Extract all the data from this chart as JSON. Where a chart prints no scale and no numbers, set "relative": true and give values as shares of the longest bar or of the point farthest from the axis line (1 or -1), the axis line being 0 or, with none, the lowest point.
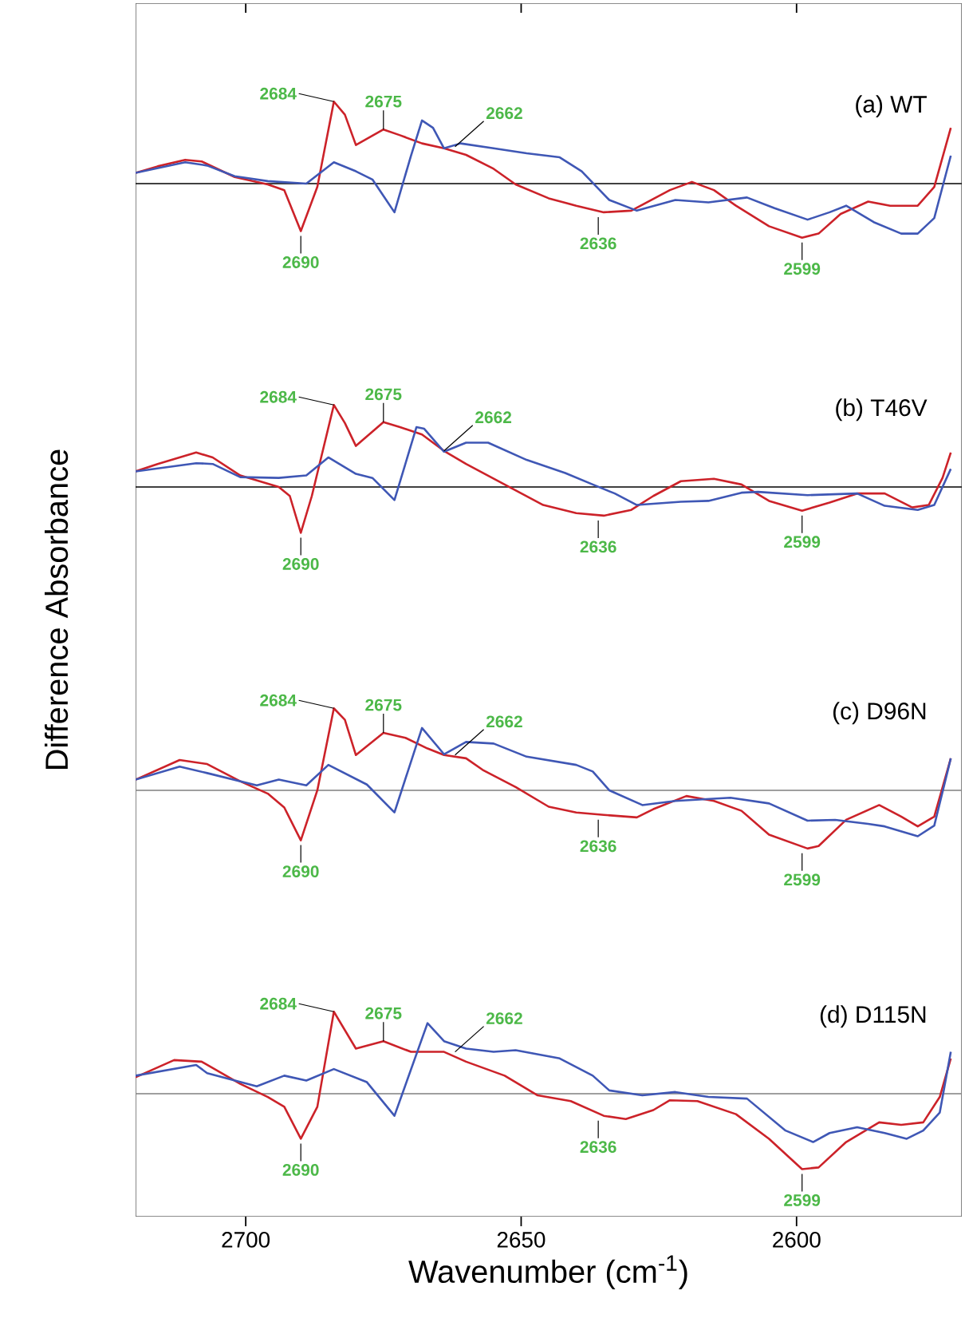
{
  "chart_data": [
    {
      "type": "line",
      "title": "(a) WT",
      "relative": true,
      "xlim": [
        2720,
        2570
      ],
      "xticks": [
        2700,
        2650,
        2600
      ],
      "tick_labels": false,
      "series": [
        {
          "color": "#cc2229",
          "x": [
            2720,
            2716,
            2711,
            2708,
            2702,
            2696,
            2693,
            2690,
            2687,
            2684,
            2682,
            2680,
            2675,
            2672,
            2668,
            2664,
            2660,
            2655,
            2651,
            2645,
            2640,
            2635,
            2630,
            2623,
            2619,
            2615,
            2611,
            2605,
            2599,
            2596,
            2592,
            2587,
            2583,
            2578,
            2575,
            2572
          ],
          "values": [
            0.13,
            0.21,
            0.29,
            0.27,
            0.08,
            -0.01,
            -0.08,
            -0.58,
            -0.04,
            1.0,
            0.84,
            0.47,
            0.66,
            0.59,
            0.49,
            0.43,
            0.35,
            0.18,
            -0.01,
            -0.18,
            -0.27,
            -0.35,
            -0.33,
            -0.08,
            0.02,
            -0.08,
            -0.27,
            -0.52,
            -0.66,
            -0.61,
            -0.37,
            -0.22,
            -0.27,
            -0.27,
            -0.04,
            0.68
          ]
        },
        {
          "color": "#3f57b5",
          "x": [
            2720,
            2711,
            2707,
            2702,
            2696,
            2689,
            2684,
            2680,
            2677,
            2673,
            2670,
            2668,
            2666,
            2664,
            2661,
            2655,
            2649,
            2643,
            2639,
            2634,
            2629,
            2622,
            2616,
            2609,
            2604,
            2598,
            2594,
            2591,
            2586,
            2581,
            2578,
            2575,
            2572
          ],
          "values": [
            0.13,
            0.26,
            0.22,
            0.09,
            0.03,
            0.0,
            0.26,
            0.15,
            0.05,
            -0.35,
            0.34,
            0.77,
            0.68,
            0.43,
            0.49,
            0.43,
            0.37,
            0.32,
            0.15,
            -0.2,
            -0.33,
            -0.2,
            -0.23,
            -0.17,
            -0.3,
            -0.44,
            -0.35,
            -0.27,
            -0.47,
            -0.61,
            -0.61,
            -0.42,
            0.34
          ]
        }
      ],
      "ref_lines": [
        {
          "axis": "y",
          "value": 0,
          "color": "#000000"
        }
      ],
      "annotations": [
        {
          "text": "2684",
          "x": 2684,
          "y": 1.0
        },
        {
          "text": "2675",
          "x": 2675,
          "y": 0.66
        },
        {
          "text": "2662",
          "x": 2662,
          "y": 0.45
        },
        {
          "text": "2690",
          "x": 2690,
          "y": -0.58
        },
        {
          "text": "2636",
          "x": 2636,
          "y": -0.35
        },
        {
          "text": "2599",
          "x": 2599,
          "y": -0.66
        }
      ]
    },
    {
      "type": "line",
      "title": "(b) T46V",
      "relative": true,
      "xlim": [
        2720,
        2570
      ],
      "tick_labels": false,
      "ylabel": "Difference Absorbance",
      "series": [
        {
          "color": "#cc2229",
          "x": [
            2720,
            2716,
            2709,
            2706,
            2701,
            2694,
            2692,
            2690,
            2688,
            2684,
            2682,
            2680,
            2675,
            2672,
            2668,
            2664,
            2660,
            2653,
            2646,
            2640,
            2635,
            2630,
            2626,
            2621,
            2615,
            2610,
            2605,
            2599,
            2594,
            2589,
            2584,
            2579,
            2576,
            2573.5,
            2572
          ],
          "values": [
            0.19,
            0.28,
            0.42,
            0.36,
            0.14,
            0.0,
            -0.11,
            -0.56,
            -0.11,
            1.0,
            0.78,
            0.5,
            0.79,
            0.73,
            0.64,
            0.44,
            0.28,
            0.03,
            -0.22,
            -0.32,
            -0.35,
            -0.28,
            -0.11,
            0.07,
            0.1,
            0.03,
            -0.17,
            -0.29,
            -0.19,
            -0.08,
            -0.08,
            -0.25,
            -0.22,
            0.11,
            0.42
          ]
        },
        {
          "color": "#3f57b5",
          "x": [
            2720,
            2709,
            2706,
            2701,
            2694,
            2689,
            2685,
            2680,
            2677,
            2673,
            2669,
            2667.6,
            2664,
            2660,
            2656,
            2649,
            2642,
            2637,
            2633,
            2629,
            2621,
            2616,
            2610,
            2607,
            2598,
            2589,
            2584,
            2578,
            2575,
            2572
          ],
          "values": [
            0.19,
            0.29,
            0.28,
            0.12,
            0.11,
            0.14,
            0.36,
            0.16,
            0.11,
            -0.16,
            0.73,
            0.71,
            0.43,
            0.54,
            0.54,
            0.33,
            0.17,
            0.03,
            -0.08,
            -0.22,
            -0.18,
            -0.17,
            -0.07,
            -0.06,
            -0.1,
            -0.08,
            -0.23,
            -0.28,
            -0.22,
            0.22
          ]
        }
      ],
      "ref_lines": [
        {
          "axis": "y",
          "value": 0,
          "color": "#000000"
        }
      ],
      "annotations": [
        {
          "text": "2684",
          "x": 2684,
          "y": 1.0
        },
        {
          "text": "2675",
          "x": 2675,
          "y": 0.79
        },
        {
          "text": "2662",
          "x": 2664,
          "y": 0.44
        },
        {
          "text": "2690",
          "x": 2690,
          "y": -0.56
        },
        {
          "text": "2636",
          "x": 2636,
          "y": -0.35
        },
        {
          "text": "2599",
          "x": 2599,
          "y": -0.29
        }
      ]
    },
    {
      "type": "line",
      "title": "(c) D96N",
      "relative": true,
      "xlim": [
        2720,
        2570
      ],
      "tick_labels": false,
      "series": [
        {
          "color": "#cc2229",
          "x": [
            2720,
            2712,
            2707,
            2701,
            2696,
            2693,
            2690,
            2687,
            2684,
            2682,
            2680,
            2675,
            2671,
            2667,
            2664,
            2660,
            2657,
            2651,
            2645,
            2640,
            2635,
            2629,
            2626,
            2620,
            2615,
            2610,
            2605,
            2598,
            2596,
            2591,
            2585,
            2581,
            2578,
            2575,
            2572
          ],
          "values": [
            0.13,
            0.37,
            0.32,
            0.11,
            -0.04,
            -0.21,
            -0.61,
            0.0,
            1.0,
            0.86,
            0.43,
            0.7,
            0.64,
            0.51,
            0.43,
            0.39,
            0.25,
            0.04,
            -0.2,
            -0.27,
            -0.3,
            -0.33,
            -0.23,
            -0.07,
            -0.13,
            -0.25,
            -0.54,
            -0.71,
            -0.68,
            -0.36,
            -0.18,
            -0.32,
            -0.44,
            -0.32,
            0.39
          ]
        },
        {
          "color": "#3f57b5",
          "x": [
            2720,
            2712,
            2707,
            2698,
            2694,
            2689,
            2685,
            2678,
            2673,
            2668,
            2664,
            2660,
            2655,
            2649,
            2640,
            2637,
            2634,
            2628,
            2622,
            2612,
            2605,
            2598,
            2593,
            2587,
            2584,
            2578,
            2575,
            2572
          ],
          "values": [
            0.13,
            0.29,
            0.21,
            0.06,
            0.13,
            0.06,
            0.31,
            0.07,
            -0.27,
            0.76,
            0.44,
            0.59,
            0.57,
            0.41,
            0.31,
            0.23,
            0.0,
            -0.18,
            -0.13,
            -0.09,
            -0.16,
            -0.37,
            -0.36,
            -0.41,
            -0.44,
            -0.56,
            -0.43,
            0.39
          ]
        }
      ],
      "ref_lines": [
        {
          "axis": "y",
          "value": 0,
          "color": "#7f7f7f"
        }
      ],
      "annotations": [
        {
          "text": "2684",
          "x": 2684,
          "y": 1.0
        },
        {
          "text": "2675",
          "x": 2675,
          "y": 0.7
        },
        {
          "text": "2662",
          "x": 2662,
          "y": 0.43
        },
        {
          "text": "2690",
          "x": 2690,
          "y": -0.61
        },
        {
          "text": "2636",
          "x": 2636,
          "y": -0.3
        },
        {
          "text": "2599",
          "x": 2599,
          "y": -0.71
        }
      ]
    },
    {
      "type": "line",
      "title": "(d) D115N",
      "relative": true,
      "xlim": [
        2720,
        2570
      ],
      "xticks": [
        2700,
        2650,
        2600
      ],
      "tick_labels": "x",
      "xlabel": "Wavenumber (cm$^{-1}$)",
      "series": [
        {
          "color": "#cc2229",
          "x": [
            2720,
            2713,
            2708,
            2701,
            2696,
            2693,
            2690,
            2687,
            2684,
            2680,
            2675,
            2670,
            2664,
            2660,
            2653,
            2647,
            2641,
            2635,
            2631,
            2626,
            2623,
            2618,
            2611,
            2605,
            2599,
            2596,
            2591,
            2585,
            2581,
            2577,
            2574,
            2572
          ],
          "values": [
            0.2,
            0.41,
            0.39,
            0.12,
            -0.04,
            -0.16,
            -0.55,
            -0.16,
            1.0,
            0.55,
            0.64,
            0.51,
            0.51,
            0.39,
            0.22,
            -0.02,
            -0.09,
            -0.27,
            -0.31,
            -0.2,
            -0.08,
            -0.09,
            -0.25,
            -0.55,
            -0.92,
            -0.9,
            -0.59,
            -0.35,
            -0.38,
            -0.35,
            -0.04,
            0.43
          ]
        },
        {
          "color": "#3f57b5",
          "x": [
            2720,
            2709,
            2707,
            2698,
            2693,
            2689,
            2684,
            2678,
            2673,
            2667,
            2664,
            2660,
            2655,
            2651,
            2643,
            2637,
            2634,
            2628,
            2622,
            2616,
            2609,
            2602,
            2597,
            2594,
            2589,
            2584,
            2580,
            2577,
            2574,
            2572
          ],
          "values": [
            0.22,
            0.35,
            0.25,
            0.09,
            0.22,
            0.16,
            0.3,
            0.14,
            -0.27,
            0.86,
            0.64,
            0.55,
            0.51,
            0.53,
            0.43,
            0.22,
            0.04,
            -0.02,
            0.02,
            -0.04,
            -0.06,
            -0.45,
            -0.59,
            -0.48,
            -0.41,
            -0.48,
            -0.55,
            -0.45,
            -0.23,
            0.51
          ]
        }
      ],
      "ref_lines": [
        {
          "axis": "y",
          "value": 0,
          "color": "#7f7f7f"
        }
      ],
      "annotations": [
        {
          "text": "2684",
          "x": 2684,
          "y": 1.0
        },
        {
          "text": "2675",
          "x": 2675,
          "y": 0.64
        },
        {
          "text": "2662",
          "x": 2662,
          "y": 0.51
        },
        {
          "text": "2690",
          "x": 2690,
          "y": -0.55
        },
        {
          "text": "2636",
          "x": 2636,
          "y": -0.27
        },
        {
          "text": "2599",
          "x": 2599,
          "y": -0.92
        }
      ]
    }
  ]
}
